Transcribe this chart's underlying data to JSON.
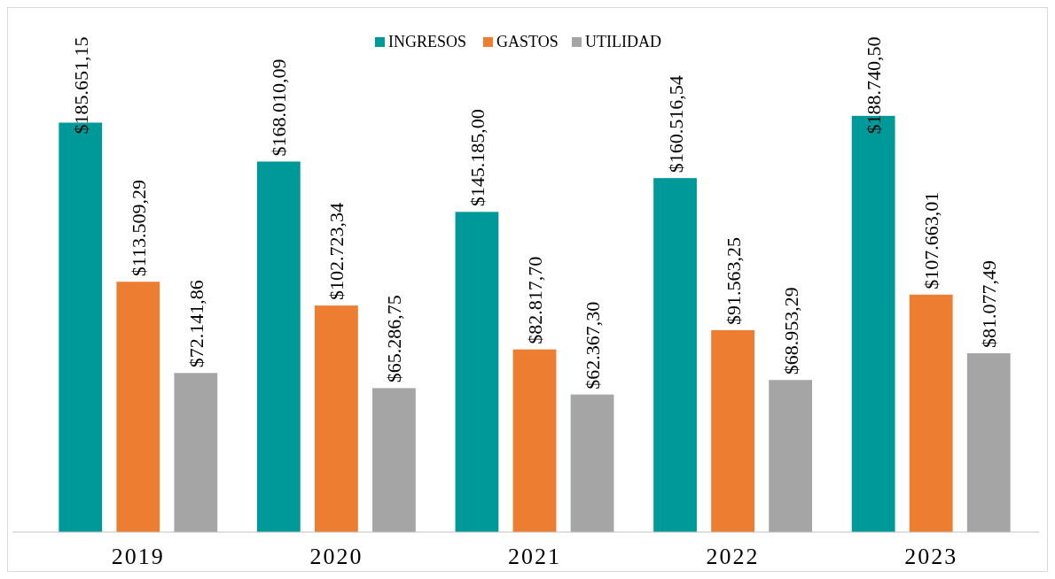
{
  "chart_data": {
    "type": "bar",
    "categories": [
      "2019",
      "2020",
      "2021",
      "2022",
      "2023"
    ],
    "series": [
      {
        "name": "INGRESOS",
        "color": "#009999",
        "values": [
          185651.15,
          168010.09,
          145185.0,
          160516.54,
          188740.5
        ],
        "value_labels": [
          "$185.651,15",
          "$168.010,09",
          "$145.185,00",
          "$160.516,54",
          "$188.740,50"
        ]
      },
      {
        "name": "GASTOS",
        "color": "#ed7d31",
        "values": [
          113509.29,
          102723.34,
          82817.7,
          91563.25,
          107663.01
        ],
        "value_labels": [
          "$113.509,29",
          "$102.723,34",
          "$82.817,70",
          "$91.563,25",
          "$107.663,01"
        ]
      },
      {
        "name": "UTILIDAD",
        "color": "#a5a5a5",
        "values": [
          72141.86,
          65286.75,
          62367.3,
          68953.29,
          81077.49
        ],
        "value_labels": [
          "$72.141,86",
          "$65.286,75",
          "$62.367,30",
          "$68.953,29",
          "$81.077,49"
        ]
      }
    ],
    "legend": "top"
  }
}
